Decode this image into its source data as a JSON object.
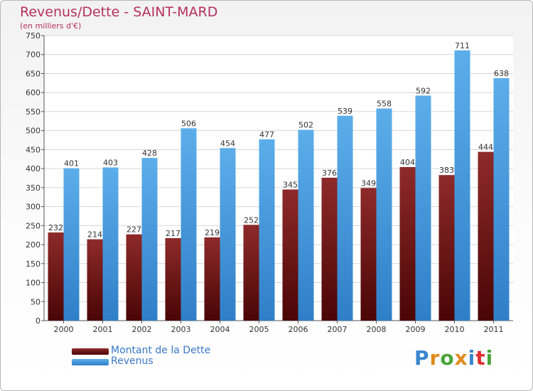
{
  "title": "Revenus/Dette - SAINT-MARD",
  "subtitle": "(en milliers d'€)",
  "logo_text": "Proxiti",
  "colors": {
    "dette": "#7a1a1a",
    "revenus": "#4a9fe0",
    "title": "#b5305e"
  },
  "chart_data": {
    "type": "bar",
    "categories": [
      "2000",
      "2001",
      "2002",
      "2003",
      "2004",
      "2005",
      "2006",
      "2007",
      "2008",
      "2009",
      "2010",
      "2011"
    ],
    "series": [
      {
        "name": "Montant de la Dette",
        "values": [
          232,
          214,
          227,
          217,
          219,
          252,
          345,
          376,
          349,
          404,
          383,
          444
        ]
      },
      {
        "name": "Revenus",
        "values": [
          401,
          403,
          428,
          506,
          454,
          477,
          502,
          539,
          558,
          592,
          711,
          638
        ]
      }
    ],
    "ylim": [
      0,
      750
    ],
    "yticks": [
      0,
      50,
      100,
      150,
      200,
      250,
      300,
      350,
      400,
      450,
      500,
      550,
      600,
      650,
      700,
      750
    ],
    "grid": true,
    "legend": "bottom-left"
  }
}
